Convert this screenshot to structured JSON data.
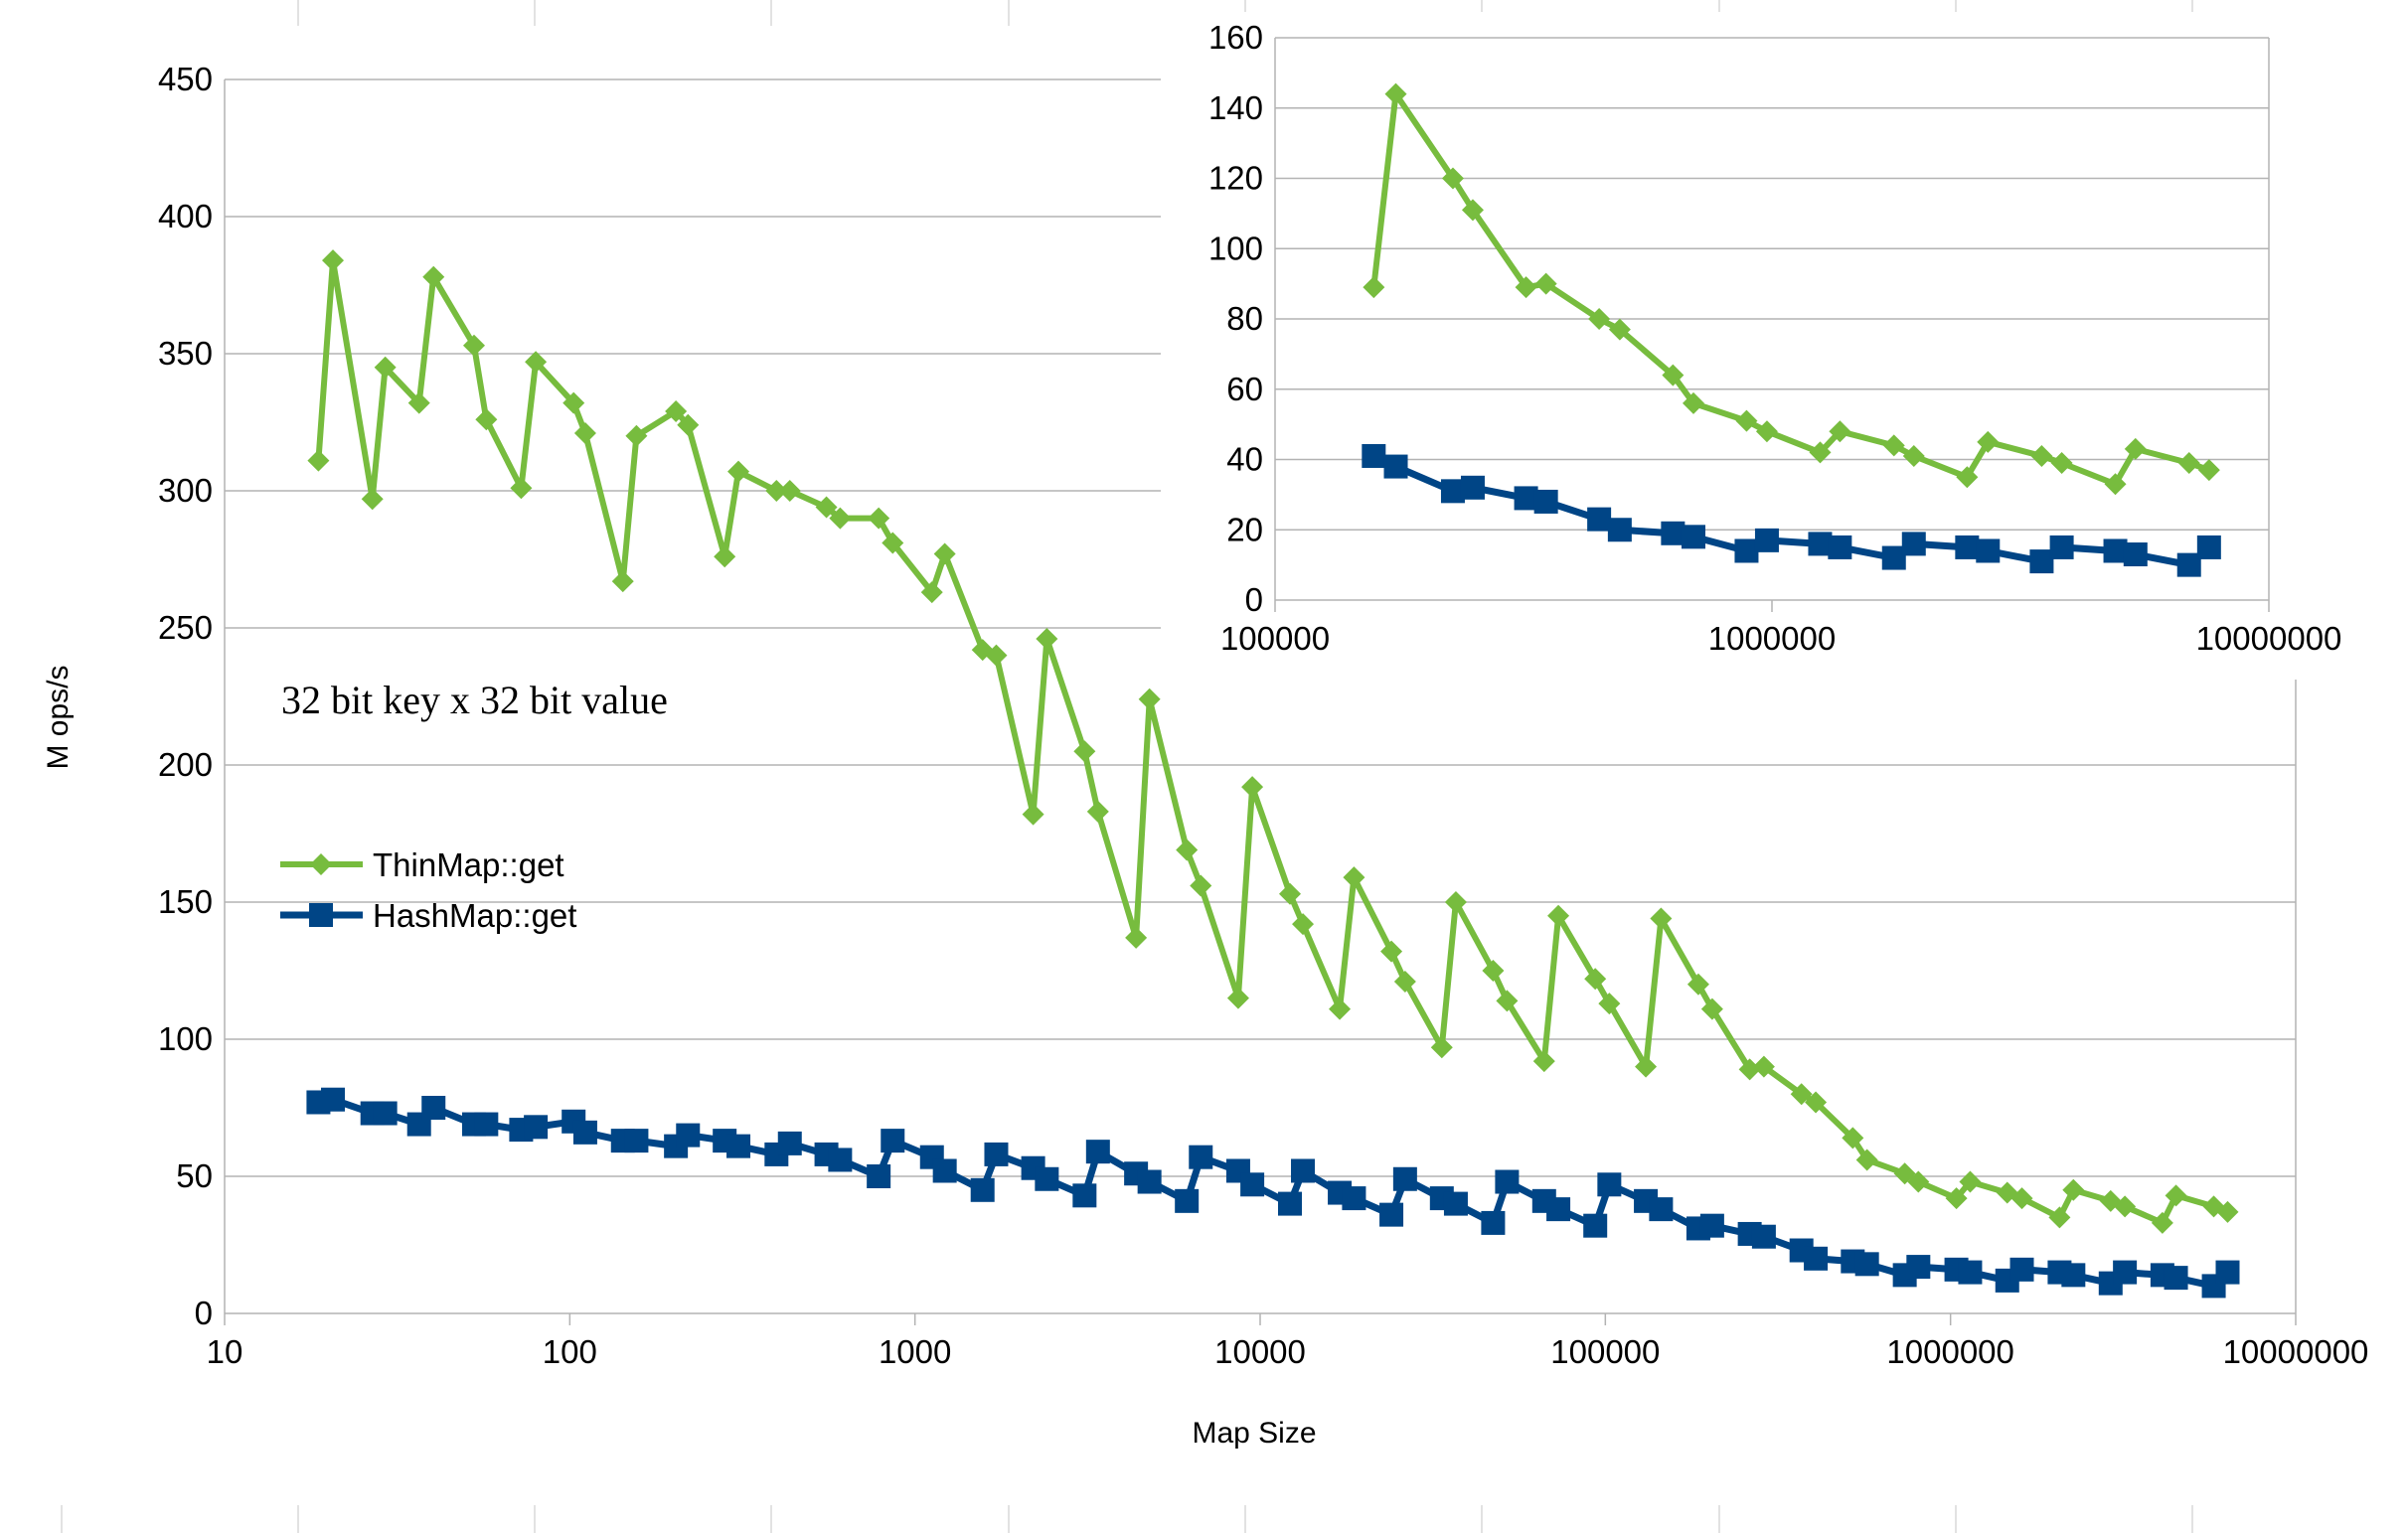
{
  "chart_data": [
    {
      "id": "main",
      "type": "line",
      "title": "",
      "xlabel": "Map Size",
      "ylabel": "M ops/s",
      "x_scale": "log",
      "xlim": [
        10,
        10000000
      ],
      "ylim": [
        0,
        450
      ],
      "x_ticks": [
        "10",
        "100",
        "1000",
        "10000",
        "100000",
        "1000000",
        "10000000"
      ],
      "y_ticks": [
        "0",
        "50",
        "100",
        "150",
        "200",
        "250",
        "300",
        "350",
        "400",
        "450"
      ],
      "grid": "horizontal",
      "legend_position": "left-middle",
      "annotation": "32 bit key x 32 bit value",
      "series": [
        {
          "name": "ThinMap::get",
          "color": "#77bc3e",
          "marker": "diamond",
          "points": [
            [
              18.7,
              311
            ],
            [
              20.6,
              384
            ],
            [
              26.8,
              297
            ],
            [
              29.2,
              345
            ],
            [
              36.6,
              332
            ],
            [
              40.3,
              378
            ],
            [
              52.8,
              353
            ],
            [
              57.3,
              326
            ],
            [
              72.3,
              301
            ],
            [
              79.7,
              347
            ],
            [
              102.6,
              332
            ],
            [
              110.9,
              321
            ],
            [
              142.5,
              267
            ],
            [
              156,
              320
            ],
            [
              203,
              329
            ],
            [
              220,
              324
            ],
            [
              281,
              276
            ],
            [
              308,
              307
            ],
            [
              397,
              300
            ],
            [
              434,
              300
            ],
            [
              554,
              294
            ],
            [
              607,
              290
            ],
            [
              785,
              290
            ],
            [
              862,
              281
            ],
            [
              1120,
              263
            ],
            [
              1220,
              277
            ],
            [
              1570,
              242
            ],
            [
              1720,
              240
            ],
            [
              2200,
              182
            ],
            [
              2410,
              246
            ],
            [
              3100,
              205
            ],
            [
              3390,
              183
            ],
            [
              4370,
              137
            ],
            [
              4780,
              224
            ],
            [
              6130,
              169
            ],
            [
              6730,
              156
            ],
            [
              8640,
              115
            ],
            [
              9490,
              192
            ],
            [
              12200,
              153
            ],
            [
              13300,
              142
            ],
            [
              17000,
              111
            ],
            [
              18700,
              159
            ],
            [
              24000,
              132
            ],
            [
              26300,
              121
            ],
            [
              33600,
              97
            ],
            [
              36900,
              150
            ],
            [
              47300,
              125
            ],
            [
              51900,
              114
            ],
            [
              66500,
              92
            ],
            [
              73100,
              145
            ],
            [
              93500,
              122
            ],
            [
              102700,
              113
            ],
            [
              131000,
              90
            ],
            [
              145000,
              144
            ],
            [
              186000,
              120
            ],
            [
              204000,
              111
            ],
            [
              262000,
              89
            ],
            [
              288000,
              90
            ],
            [
              370000,
              80
            ],
            [
              407000,
              77
            ],
            [
              521000,
              64
            ],
            [
              573000,
              56
            ],
            [
              737000,
              51
            ],
            [
              807000,
              48
            ],
            [
              1040000,
              42
            ],
            [
              1140000,
              48
            ],
            [
              1460000,
              44
            ],
            [
              1610000,
              42
            ],
            [
              2070000,
              35
            ],
            [
              2270000,
              45
            ],
            [
              2910000,
              41
            ],
            [
              3200000,
              39
            ],
            [
              4110000,
              33
            ],
            [
              4500000,
              43
            ],
            [
              5790000,
              39
            ],
            [
              6350000,
              37
            ]
          ]
        },
        {
          "name": "HashMap::get",
          "color": "#004586",
          "marker": "square",
          "points": [
            [
              18.7,
              77
            ],
            [
              20.6,
              78
            ],
            [
              26.8,
              73
            ],
            [
              29.2,
              73
            ],
            [
              36.6,
              69
            ],
            [
              40.3,
              75
            ],
            [
              52.8,
              69
            ],
            [
              57.3,
              69
            ],
            [
              72.3,
              67
            ],
            [
              79.7,
              68
            ],
            [
              102.6,
              70
            ],
            [
              110.9,
              66
            ],
            [
              142.5,
              63
            ],
            [
              156,
              63
            ],
            [
              203,
              61
            ],
            [
              220,
              65
            ],
            [
              281,
              63
            ],
            [
              308,
              61
            ],
            [
              397,
              58
            ],
            [
              434,
              62
            ],
            [
              554,
              58
            ],
            [
              607,
              56
            ],
            [
              785,
              50
            ],
            [
              862,
              63
            ],
            [
              1120,
              57
            ],
            [
              1220,
              52
            ],
            [
              1570,
              45
            ],
            [
              1720,
              58
            ],
            [
              2200,
              53
            ],
            [
              2410,
              49
            ],
            [
              3100,
              43
            ],
            [
              3390,
              59
            ],
            [
              4370,
              51
            ],
            [
              4780,
              48
            ],
            [
              6130,
              41
            ],
            [
              6730,
              57
            ],
            [
              8640,
              52
            ],
            [
              9490,
              47
            ],
            [
              12200,
              40
            ],
            [
              13300,
              52
            ],
            [
              17000,
              44
            ],
            [
              18700,
              42
            ],
            [
              24000,
              36
            ],
            [
              26300,
              49
            ],
            [
              33600,
              42
            ],
            [
              36900,
              40
            ],
            [
              47300,
              33
            ],
            [
              51900,
              48
            ],
            [
              66500,
              41
            ],
            [
              73100,
              38
            ],
            [
              93500,
              32
            ],
            [
              102700,
              47
            ],
            [
              131000,
              41
            ],
            [
              145000,
              38
            ],
            [
              186000,
              31
            ],
            [
              204000,
              32
            ],
            [
              262000,
              29
            ],
            [
              288000,
              28
            ],
            [
              370000,
              23
            ],
            [
              407000,
              20
            ],
            [
              521000,
              19
            ],
            [
              573000,
              18
            ],
            [
              737000,
              14
            ],
            [
              807000,
              17
            ],
            [
              1040000,
              16
            ],
            [
              1140000,
              15
            ],
            [
              1460000,
              12
            ],
            [
              1610000,
              16
            ],
            [
              2070000,
              15
            ],
            [
              2270000,
              14
            ],
            [
              2910000,
              11
            ],
            [
              3200000,
              15
            ],
            [
              4110000,
              14
            ],
            [
              4500000,
              13
            ],
            [
              5790000,
              10
            ],
            [
              6350000,
              15
            ]
          ]
        }
      ]
    },
    {
      "id": "inset",
      "type": "line",
      "title": "",
      "x_scale": "log",
      "xlim": [
        100000,
        10000000
      ],
      "ylim": [
        0,
        160
      ],
      "x_ticks": [
        "100000",
        "1000000",
        "10000000"
      ],
      "y_ticks": [
        "0",
        "20",
        "40",
        "60",
        "80",
        "100",
        "120",
        "140",
        "160"
      ],
      "grid": "horizontal",
      "series": [
        {
          "name": "ThinMap::get",
          "color": "#77bc3e",
          "marker": "diamond",
          "points": [
            [
              158000,
              89
            ],
            [
              175000,
              144
            ],
            [
              228000,
              120
            ],
            [
              250000,
              111
            ],
            [
              320000,
              89
            ],
            [
              351000,
              90
            ],
            [
              449000,
              80
            ],
            [
              494000,
              77
            ],
            [
              632000,
              64
            ],
            [
              695000,
              56
            ],
            [
              889000,
              51
            ],
            [
              977000,
              48
            ],
            [
              1250000,
              42
            ],
            [
              1370000,
              48
            ],
            [
              1760000,
              44
            ],
            [
              1930000,
              41
            ],
            [
              2470000,
              35
            ],
            [
              2720000,
              45
            ],
            [
              3490000,
              41
            ],
            [
              3830000,
              39
            ],
            [
              4910000,
              33
            ],
            [
              5390000,
              43
            ],
            [
              6910000,
              39
            ],
            [
              7580000,
              37
            ]
          ]
        },
        {
          "name": "HashMap::get",
          "color": "#004586",
          "marker": "square",
          "points": [
            [
              158000,
              41
            ],
            [
              175000,
              38
            ],
            [
              228000,
              31
            ],
            [
              250000,
              32
            ],
            [
              320000,
              29
            ],
            [
              351000,
              28
            ],
            [
              449000,
              23
            ],
            [
              494000,
              20
            ],
            [
              632000,
              19
            ],
            [
              695000,
              18
            ],
            [
              889000,
              14
            ],
            [
              977000,
              17
            ],
            [
              1250000,
              16
            ],
            [
              1370000,
              15
            ],
            [
              1760000,
              12
            ],
            [
              1930000,
              16
            ],
            [
              2470000,
              15
            ],
            [
              2720000,
              14
            ],
            [
              3490000,
              11
            ],
            [
              3830000,
              15
            ],
            [
              4910000,
              14
            ],
            [
              5390000,
              13
            ],
            [
              6910000,
              10
            ],
            [
              7580000,
              15
            ]
          ]
        }
      ]
    }
  ]
}
